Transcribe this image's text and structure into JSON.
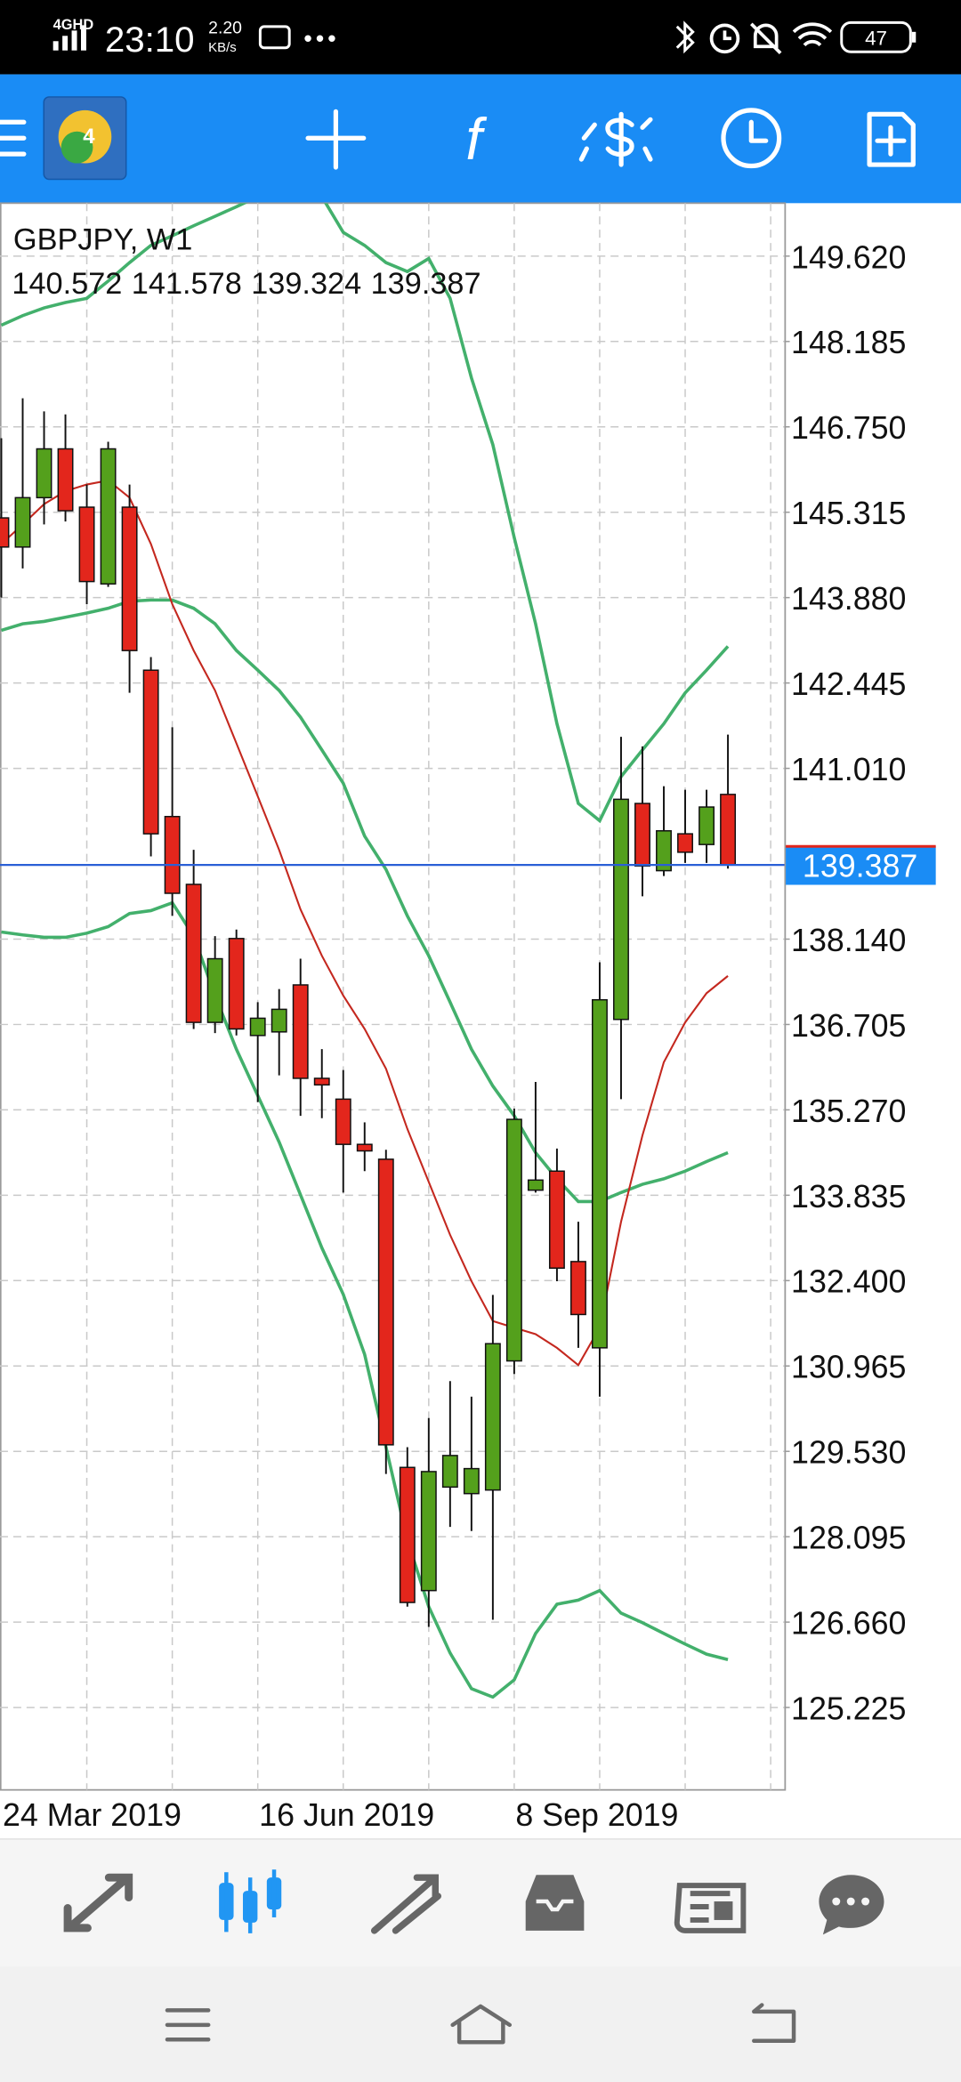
{
  "status_bar": {
    "network": "4GHD",
    "time": "23:10",
    "speed": "2.20",
    "speed_unit": "KB/s",
    "battery": "47"
  },
  "toolbar": {
    "function_icon": "f"
  },
  "chart_data": {
    "type": "candlestick",
    "title": "GBPJPY, W1",
    "categories": [
      "24 Mar 2019",
      null,
      null,
      null,
      null,
      null,
      null,
      null,
      null,
      null,
      null,
      null,
      "16 Jun 2019",
      null,
      null,
      null,
      null,
      null,
      null,
      null,
      null,
      null,
      null,
      null,
      "8 Sep 2019",
      null,
      null,
      null,
      null,
      null,
      null,
      null,
      null,
      null,
      null
    ],
    "open": [
      145.22,
      144.73,
      145.56,
      146.38,
      145.4,
      144.11,
      145.4,
      142.66,
      140.2,
      139.06,
      136.74,
      138.15,
      136.52,
      136.58,
      137.37,
      135.8,
      135.45,
      134.69,
      134.44,
      129.26,
      127.19,
      128.93,
      128.82,
      128.88,
      131.05,
      133.92,
      134.24,
      132.72,
      131.27,
      136.79,
      140.42,
      139.29,
      139.91,
      139.73,
      140.572
    ],
    "high": [
      146.56,
      147.23,
      147.01,
      146.96,
      145.78,
      146.5,
      145.78,
      142.88,
      141.7,
      139.64,
      138.19,
      138.3,
      137.08,
      137.3,
      137.81,
      136.29,
      135.94,
      135.06,
      134.6,
      129.6,
      130.09,
      130.71,
      130.45,
      132.16,
      135.29,
      135.74,
      134.62,
      133.39,
      137.75,
      141.54,
      141.38,
      140.71,
      140.65,
      140.65,
      141.578
    ],
    "low": [
      143.88,
      144.37,
      145.11,
      145.16,
      143.77,
      144.06,
      142.28,
      139.53,
      138.53,
      136.63,
      136.56,
      136.52,
      135.4,
      135.85,
      135.17,
      135.13,
      133.88,
      134.24,
      129.15,
      126.92,
      126.58,
      128.26,
      128.19,
      126.7,
      130.83,
      133.88,
      132.39,
      131.27,
      130.45,
      135.45,
      138.86,
      139.2,
      139.42,
      139.42,
      139.324
    ],
    "close": [
      144.73,
      145.56,
      146.38,
      145.34,
      144.15,
      146.38,
      142.99,
      139.91,
      138.91,
      136.74,
      137.81,
      136.63,
      136.81,
      136.96,
      135.8,
      135.69,
      134.69,
      134.58,
      129.64,
      126.99,
      129.19,
      129.46,
      129.24,
      131.34,
      135.11,
      134.09,
      132.61,
      131.83,
      137.12,
      140.49,
      139.37,
      139.96,
      139.6,
      140.36,
      139.387
    ],
    "up_color": "#54a01c",
    "down_color": "#e3261c",
    "lines": [
      {
        "color": "#43b06c",
        "values": [
          148.46,
          148.62,
          148.75,
          148.84,
          148.91,
          149.2,
          149.51,
          149.8,
          149.96,
          150.13,
          150.29,
          150.45,
          150.62,
          150.76,
          150.8,
          150.62,
          150.02,
          149.8,
          149.51,
          149.36,
          149.58,
          148.91,
          147.57,
          146.45,
          144.89,
          143.44,
          141.76,
          140.42,
          140.13,
          140.87,
          141.32,
          141.76,
          142.28,
          142.66,
          143.06
        ]
      },
      {
        "color": "#43b06c",
        "values": [
          143.33,
          143.44,
          143.48,
          143.55,
          143.62,
          143.7,
          143.82,
          143.84,
          143.84,
          143.7,
          143.44,
          142.99,
          142.66,
          142.32,
          141.87,
          141.32,
          140.76,
          139.87,
          139.31,
          138.53,
          137.86,
          137.08,
          136.29,
          135.67,
          135.17,
          134.55,
          134.11,
          133.73,
          133.73,
          133.88,
          134.02,
          134.11,
          134.24,
          134.4,
          134.55
        ]
      },
      {
        "color": "#43b06c",
        "values": [
          138.26,
          138.21,
          138.17,
          138.17,
          138.24,
          138.35,
          138.57,
          138.62,
          138.75,
          138.19,
          137.19,
          136.29,
          135.51,
          134.73,
          133.84,
          132.95,
          132.17,
          131.16,
          129.6,
          128.04,
          126.92,
          126.14,
          125.54,
          125.4,
          125.69,
          126.47,
          126.96,
          127.03,
          127.19,
          126.81,
          126.65,
          126.47,
          126.29,
          126.12,
          126.03
        ]
      },
      {
        "color": "#c4281f",
        "values": [
          144.78,
          145.11,
          145.45,
          145.67,
          145.78,
          145.85,
          145.56,
          144.78,
          143.77,
          142.99,
          142.32,
          141.43,
          140.54,
          139.64,
          138.64,
          137.86,
          137.19,
          136.63,
          135.96,
          134.95,
          134.06,
          133.17,
          132.39,
          131.72,
          131.61,
          131.5,
          131.27,
          130.98,
          131.61,
          133.39,
          134.84,
          136.07,
          136.74,
          137.23,
          137.52
        ]
      }
    ],
    "price_line_color": "#2a5fd6",
    "ylim": [
      123.84,
      150.51
    ],
    "yticks": [
      {
        "value": 149.62,
        "label": "149.620"
      },
      148.185,
      {
        "value": 146.75,
        "label": "146.750"
      },
      145.315,
      {
        "value": 143.88,
        "label": "143.880"
      },
      142.445,
      {
        "value": 141.01,
        "label": "141.010"
      },
      {
        "value": 138.14,
        "label": "138.140"
      },
      136.705,
      {
        "value": 135.27,
        "label": "135.270"
      },
      133.835,
      {
        "value": 132.4,
        "label": "132.400"
      },
      130.965,
      {
        "value": 129.53,
        "label": "129.530"
      },
      128.095,
      {
        "value": 126.66,
        "label": "126.660"
      },
      125.225
    ],
    "grid": true
  }
}
